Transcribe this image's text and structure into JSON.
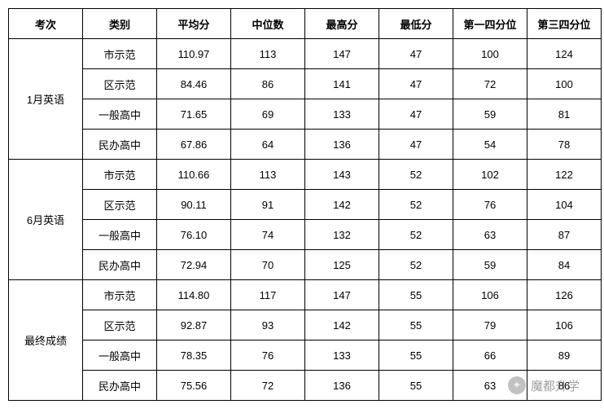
{
  "columns": [
    "考次",
    "类别",
    "平均分",
    "中位数",
    "最高分",
    "最低分",
    "第一四分位",
    "第三四分位"
  ],
  "groups": [
    {
      "exam": "1月英语",
      "rows": [
        {
          "category": "市示范",
          "mean": "110.97",
          "median": "113",
          "max": "147",
          "min": "47",
          "q1": "100",
          "q3": "124"
        },
        {
          "category": "区示范",
          "mean": "84.46",
          "median": "86",
          "max": "141",
          "min": "47",
          "q1": "72",
          "q3": "100"
        },
        {
          "category": "一般高中",
          "mean": "71.65",
          "median": "69",
          "max": "133",
          "min": "47",
          "q1": "59",
          "q3": "81"
        },
        {
          "category": "民办高中",
          "mean": "67.86",
          "median": "64",
          "max": "136",
          "min": "47",
          "q1": "54",
          "q3": "78"
        }
      ]
    },
    {
      "exam": "6月英语",
      "rows": [
        {
          "category": "市示范",
          "mean": "110.66",
          "median": "113",
          "max": "143",
          "min": "52",
          "q1": "102",
          "q3": "122"
        },
        {
          "category": "区示范",
          "mean": "90.11",
          "median": "91",
          "max": "142",
          "min": "52",
          "q1": "76",
          "q3": "104"
        },
        {
          "category": "一般高中",
          "mean": "76.10",
          "median": "74",
          "max": "132",
          "min": "52",
          "q1": "63",
          "q3": "87"
        },
        {
          "category": "民办高中",
          "mean": "72.94",
          "median": "70",
          "max": "125",
          "min": "52",
          "q1": "59",
          "q3": "84"
        }
      ]
    },
    {
      "exam": "最终成绩",
      "rows": [
        {
          "category": "市示范",
          "mean": "114.80",
          "median": "117",
          "max": "147",
          "min": "55",
          "q1": "106",
          "q3": "126"
        },
        {
          "category": "区示范",
          "mean": "92.87",
          "median": "93",
          "max": "142",
          "min": "55",
          "q1": "79",
          "q3": "106"
        },
        {
          "category": "一般高中",
          "mean": "78.35",
          "median": "76",
          "max": "133",
          "min": "55",
          "q1": "66",
          "q3": "89"
        },
        {
          "category": "民办高中",
          "mean": "75.56",
          "median": "72",
          "max": "136",
          "min": "55",
          "q1": "63",
          "q3": "86"
        }
      ]
    }
  ],
  "watermark": {
    "text": "魔都升学"
  }
}
